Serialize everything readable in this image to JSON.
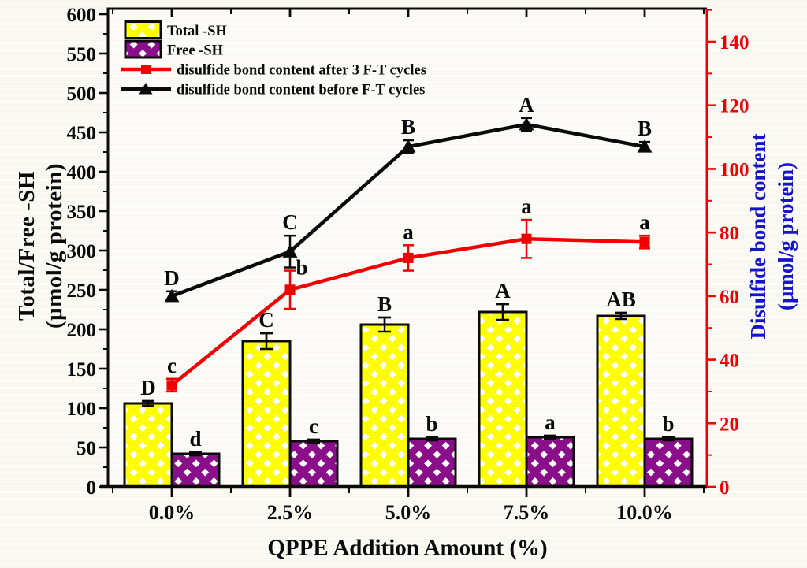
{
  "chart_data": {
    "type": "bar",
    "combo_types": [
      "bar",
      "line"
    ],
    "title": "",
    "xlabel": "QPPE Addition Amount (%)",
    "x_categories": [
      "0.0%",
      "2.5%",
      "5.0%",
      "7.5%",
      "10.0%"
    ],
    "grid": false,
    "legend_position": "top-left",
    "left_axis": {
      "label_line1": "Total/Free -SH",
      "label_line2": "(μmol/g protein)",
      "min": 0,
      "max": 600,
      "major_step": 50,
      "minor_step": 25,
      "axis_color": "#0a0a0a",
      "tick_label_color": "#0a0a0a"
    },
    "right_axis": {
      "label_line1": "Disulfide bond content",
      "label_line2": "(μmol/g protein)",
      "min": 0,
      "max": 140,
      "major_step": 20,
      "minor_step": 10,
      "axis_color": "#f20000",
      "tick_label_color": "#f20000",
      "title_color": "#1414cd"
    },
    "series": [
      {
        "name": "Total -SH",
        "type": "bar",
        "axis": "left",
        "fill": "#ffff00",
        "pattern": "crosshatch",
        "edge_color": "#0a0a0a",
        "values": [
          106,
          185,
          206,
          222,
          217
        ],
        "errors": [
          3,
          10,
          9,
          10,
          4
        ],
        "sig_labels": [
          "D",
          "C",
          "B",
          "A",
          "AB"
        ]
      },
      {
        "name": "Free -SH",
        "type": "bar",
        "axis": "left",
        "fill": "#8b0f8b",
        "pattern": "crosshatch",
        "edge_color": "#0a0a0a",
        "values": [
          42,
          58,
          61,
          63,
          61
        ],
        "errors": [
          2,
          2,
          2,
          2,
          2
        ],
        "sig_labels": [
          "d",
          "c",
          "b",
          "a",
          "b"
        ]
      },
      {
        "name": "disulfide bond content after 3 F-T cycles",
        "type": "line",
        "axis": "right",
        "marker": "square",
        "color": "#f20000",
        "values": [
          32,
          62,
          72,
          78,
          77
        ],
        "errors": [
          2,
          6,
          4,
          6,
          2
        ],
        "sig_labels": [
          "c",
          "b",
          "a",
          "a",
          "a"
        ],
        "sig_offsets": [
          [
            0,
            0
          ],
          [
            15,
            13
          ],
          [
            0,
            0
          ],
          [
            0,
            0
          ],
          [
            0,
            0
          ]
        ]
      },
      {
        "name": "disulfide bond content before F-T cycles",
        "type": "line",
        "axis": "right",
        "marker": "triangle",
        "color": "#0a0a0a",
        "values": [
          60,
          74,
          107,
          114,
          107
        ],
        "errors": [
          1.5,
          5,
          2,
          2,
          1.5
        ],
        "sig_labels": [
          "D",
          "C",
          "B",
          "A",
          "B"
        ],
        "sig_offsets": [
          [
            0,
            0
          ],
          [
            0,
            0
          ],
          [
            0,
            0
          ],
          [
            0,
            0
          ],
          [
            0,
            0
          ]
        ]
      }
    ]
  }
}
